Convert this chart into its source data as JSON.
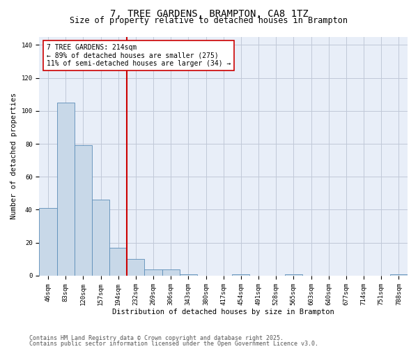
{
  "title": "7, TREE GARDENS, BRAMPTON, CA8 1TZ",
  "subtitle": "Size of property relative to detached houses in Brampton",
  "xlabel": "Distribution of detached houses by size in Brampton",
  "ylabel": "Number of detached properties",
  "categories": [
    "46sqm",
    "83sqm",
    "120sqm",
    "157sqm",
    "194sqm",
    "232sqm",
    "269sqm",
    "306sqm",
    "343sqm",
    "380sqm",
    "417sqm",
    "454sqm",
    "491sqm",
    "528sqm",
    "565sqm",
    "603sqm",
    "640sqm",
    "677sqm",
    "714sqm",
    "751sqm",
    "788sqm"
  ],
  "values": [
    41,
    105,
    79,
    46,
    17,
    10,
    4,
    4,
    1,
    0,
    0,
    1,
    0,
    0,
    1,
    0,
    0,
    0,
    0,
    0,
    1
  ],
  "bar_color": "#c8d8e8",
  "bar_edge_color": "#5b8db8",
  "vline_x": 4.5,
  "vline_color": "#cc0000",
  "annotation_text": "7 TREE GARDENS: 214sqm\n← 89% of detached houses are smaller (275)\n11% of semi-detached houses are larger (34) →",
  "annotation_box_color": "#cc0000",
  "ylim": [
    0,
    145
  ],
  "yticks": [
    0,
    20,
    40,
    60,
    80,
    100,
    120,
    140
  ],
  "grid_color": "#c0c8d8",
  "background_color": "#e8eef8",
  "footer1": "Contains HM Land Registry data © Crown copyright and database right 2025.",
  "footer2": "Contains public sector information licensed under the Open Government Licence v3.0.",
  "title_fontsize": 10,
  "subtitle_fontsize": 8.5,
  "axis_label_fontsize": 7.5,
  "tick_fontsize": 6.5,
  "annotation_fontsize": 7,
  "footer_fontsize": 6
}
